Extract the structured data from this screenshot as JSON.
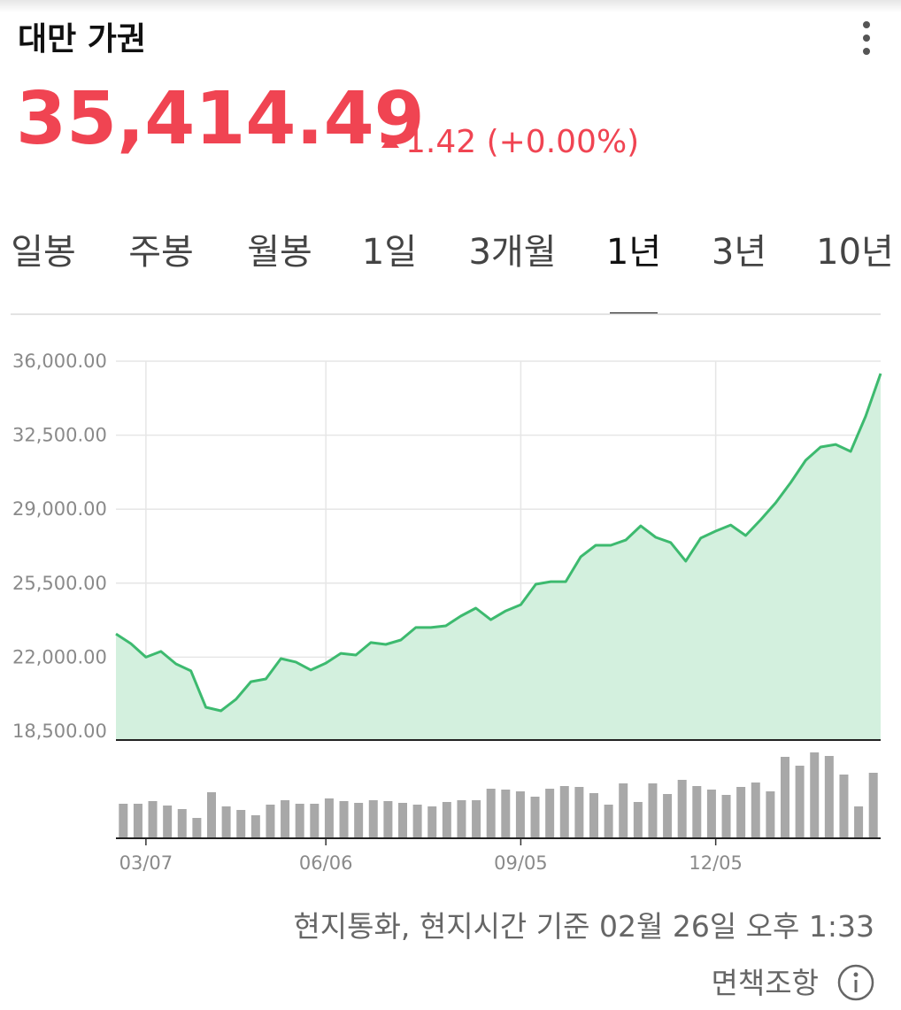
{
  "header": {
    "title": "대만 가권",
    "price": "35,414.49",
    "change": "1.42 (+0.00%)"
  },
  "tabs": [
    "일봉",
    "주봉",
    "월봉",
    "1일",
    "3개월",
    "1년",
    "3년",
    "10년"
  ],
  "selected_tab": 5,
  "chart_data": {
    "type": "area",
    "categories": [
      null,
      null,
      "03/07",
      null,
      null,
      null,
      null,
      null,
      null,
      null,
      null,
      null,
      null,
      null,
      "06/06",
      null,
      null,
      null,
      null,
      null,
      null,
      null,
      null,
      null,
      null,
      null,
      null,
      "09/05",
      null,
      null,
      null,
      null,
      null,
      null,
      null,
      null,
      null,
      null,
      null,
      null,
      "12/05",
      null,
      null,
      null,
      null,
      null,
      null,
      null,
      null,
      null,
      null,
      null
    ],
    "values": [
      23100,
      22640,
      22000,
      22270,
      21680,
      21350,
      19630,
      19460,
      20000,
      20840,
      20970,
      21930,
      21770,
      21390,
      21720,
      22180,
      22100,
      22690,
      22600,
      22810,
      23400,
      23400,
      23480,
      23940,
      24320,
      23770,
      24190,
      24480,
      25450,
      25570,
      25570,
      26750,
      27290,
      27290,
      27540,
      28210,
      27670,
      27420,
      26540,
      27630,
      27960,
      28250,
      27750,
      28500,
      29300,
      30260,
      31310,
      31940,
      32060,
      31730,
      33400,
      35414.49
    ],
    "color": "#3dba6f",
    "fill_color": "#d3f0de",
    "ylim": [
      18080,
      36000
    ],
    "yticks": [
      {
        "value": 18500,
        "label": "18,500.00"
      },
      {
        "value": 22000,
        "label": "22,000.00"
      },
      {
        "value": 25500,
        "label": "25,500.00"
      },
      {
        "value": 29000,
        "label": "29,000.00"
      },
      {
        "value": 32500,
        "label": "32,500.00"
      },
      {
        "value": 36000,
        "label": "36,000.00"
      }
    ],
    "grid": true,
    "volume": {
      "values": [
        39,
        39,
        42,
        37,
        33,
        23,
        52,
        36,
        32,
        26,
        38,
        43,
        39,
        39,
        45,
        42,
        40,
        43,
        42,
        40,
        38,
        36,
        41,
        43,
        43,
        56,
        55,
        53,
        47,
        56,
        59,
        58,
        51,
        38,
        62,
        41,
        62,
        50,
        66,
        59,
        55,
        49,
        58,
        63,
        53,
        92,
        82,
        97,
        93,
        72,
        36,
        74
      ],
      "color": "#a8a8a8"
    }
  },
  "footer": {
    "timestamp": "현지통화, 현지시간 기준 02월 26일 오후 1:33",
    "disclaimer": "면책조항"
  }
}
